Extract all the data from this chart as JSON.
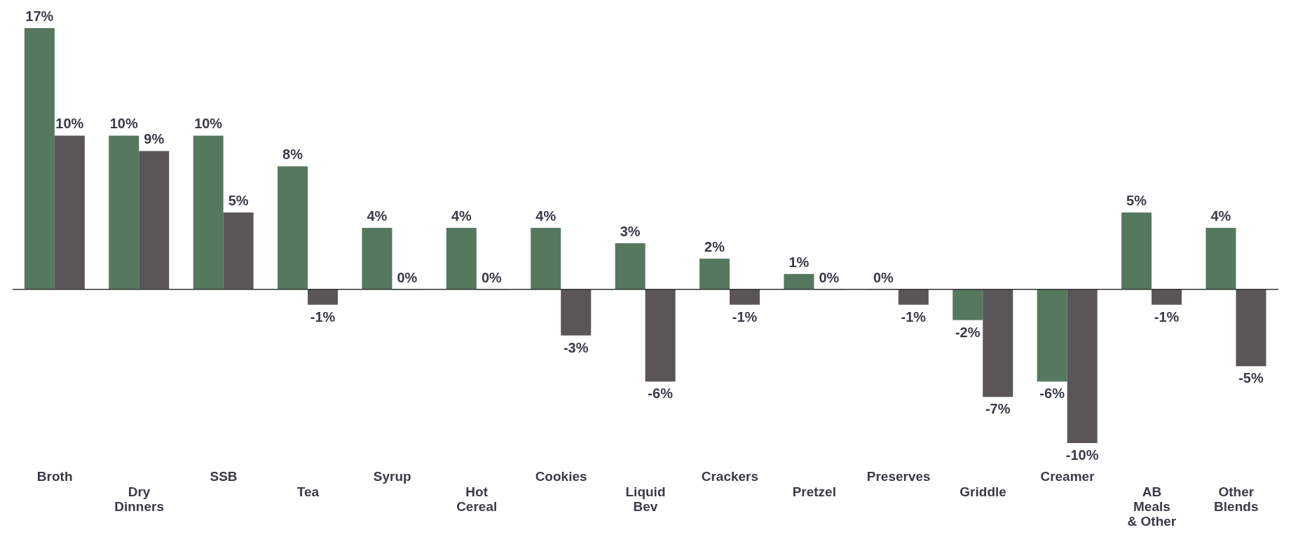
{
  "chart_data": {
    "type": "bar",
    "categories": [
      "Broth",
      "Dry Dinners",
      "SSB",
      "Tea",
      "Syrup",
      "Hot Cereal",
      "Cookies",
      "Liquid Bev",
      "Crackers",
      "Pretzel",
      "Preserves",
      "Griddle",
      "Creamer",
      "AB Meals & Other",
      "Other Blends"
    ],
    "series": [
      {
        "color": "#56785f",
        "values": [
          17,
          10,
          10,
          8,
          4,
          4,
          4,
          3,
          2,
          1,
          0,
          -2,
          -6,
          5,
          4
        ],
        "value_labels": [
          "17%",
          "10%",
          "10%",
          "8%",
          "4%",
          "4%",
          "4%",
          "3%",
          "2%",
          "1%",
          "0%",
          "-2%",
          "-6%",
          "5%",
          "4%"
        ]
      },
      {
        "color": "#5a5657",
        "values": [
          10,
          9,
          5,
          -1,
          0,
          0,
          -3,
          -6,
          -1,
          0,
          -1,
          -7,
          -10,
          -1,
          -5
        ],
        "value_labels": [
          "10%",
          "9%",
          "5%",
          "-1%",
          "0%",
          "0%",
          "-3%",
          "-6%",
          "-1%",
          "0%",
          "-1%",
          "-7%",
          "-10%",
          "-1%",
          "-5%"
        ]
      }
    ]
  }
}
